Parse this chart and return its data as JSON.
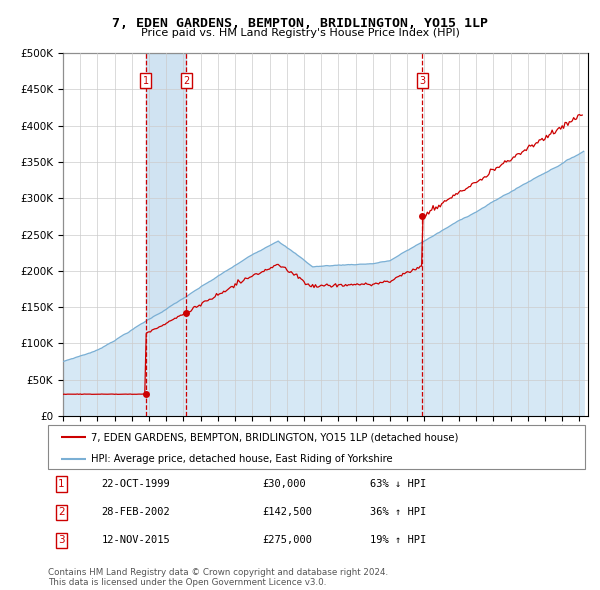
{
  "title": "7, EDEN GARDENS, BEMPTON, BRIDLINGTON, YO15 1LP",
  "subtitle": "Price paid vs. HM Land Registry's House Price Index (HPI)",
  "legend_line1": "7, EDEN GARDENS, BEMPTON, BRIDLINGTON, YO15 1LP (detached house)",
  "legend_line2": "HPI: Average price, detached house, East Riding of Yorkshire",
  "transactions": [
    {
      "num": 1,
      "date": "22-OCT-1999",
      "price": 30000,
      "pct": "63%",
      "dir": "↓",
      "date_val": 1999.81
    },
    {
      "num": 2,
      "date": "28-FEB-2002",
      "price": 142500,
      "pct": "36%",
      "dir": "↑",
      "date_val": 2002.16
    },
    {
      "num": 3,
      "date": "12-NOV-2015",
      "price": 275000,
      "pct": "19%",
      "dir": "↑",
      "date_val": 2015.87
    }
  ],
  "footer_line1": "Contains HM Land Registry data © Crown copyright and database right 2024.",
  "footer_line2": "This data is licensed under the Open Government Licence v3.0.",
  "red_color": "#cc0000",
  "blue_color": "#7aafd4",
  "bg_color": "#d6e8f5",
  "grid_color": "#cccccc",
  "ylim": [
    0,
    500000
  ],
  "yticks": [
    0,
    50000,
    100000,
    150000,
    200000,
    250000,
    300000,
    350000,
    400000,
    450000,
    500000
  ],
  "xmin": 1995.0,
  "xmax": 2025.5
}
